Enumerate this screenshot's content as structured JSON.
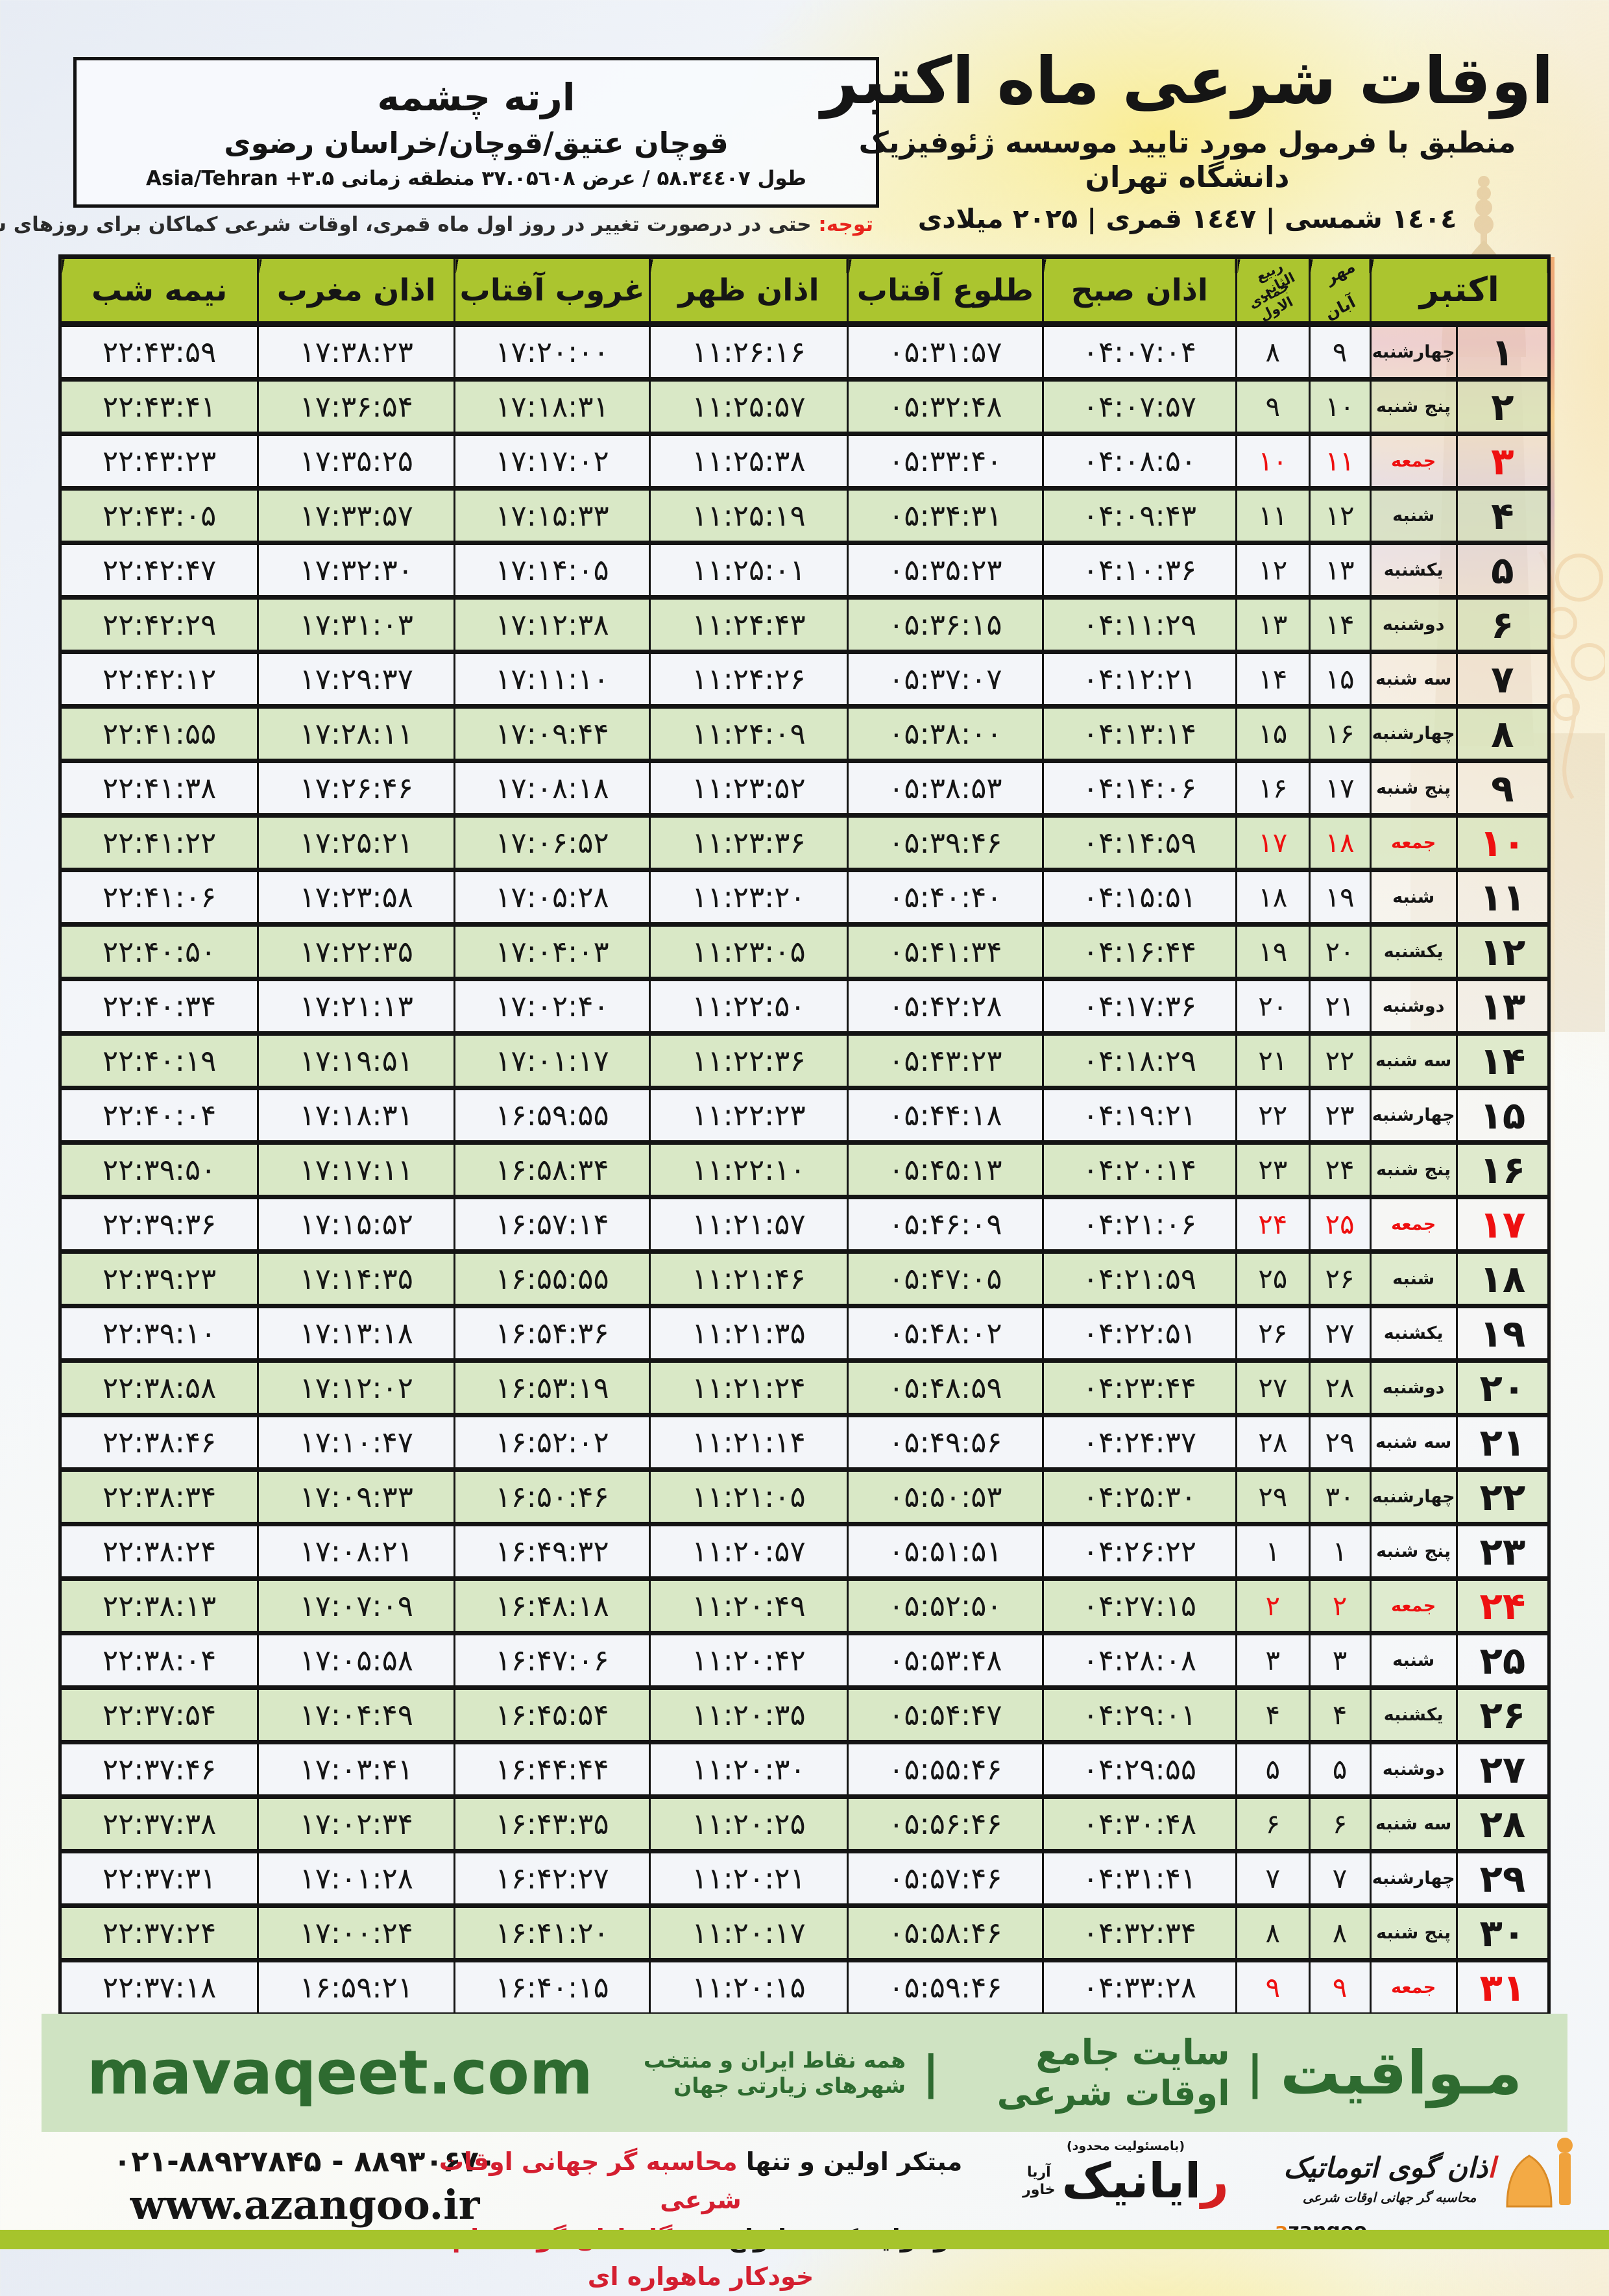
{
  "header": {
    "title": "اوقات شرعی ماه اکتبر",
    "subtitle": "منطبق با فرمول مورد تایید موسسه ژئوفیزیک دانشگاه تهران",
    "dates": "۱٤۰٤ شمسی | ۱٤٤۷ قمری | ۲۰۲۵ میلادی"
  },
  "location": {
    "name": "ارته چشمه",
    "region": "قوچان عتیق/قوچان/خراسان رضوی",
    "coords": "طول ۵۸.۳٤٤۰۷ / عرض ۳۷.۰۵٦۰۸ منطقه زمانی Asia/Tehran +۳.۵"
  },
  "note": {
    "label": "توجه:",
    "text": " حتی در درصورت تغییر در روز اول ماه قمری، اوقات شرعی کماکان برای روزهای شمسی و میلادی معتبر است."
  },
  "table": {
    "header": {
      "october": "اکتبر",
      "mehr": "مهر",
      "aban": "آبان",
      "rabi": "ربیع الثانی",
      "jumada": "جمادی الاول",
      "sobh": "اذان صبح",
      "tolu": "طلوع آفتاب",
      "zohr": "اذان ظهر",
      "ghorub": "غروب آفتاب",
      "maghreb": "اذان مغرب",
      "nimeshab": "نیمه شب"
    },
    "rows": [
      {
        "day": "۱",
        "weekday": "چهارشنبه",
        "shamsi": "۹",
        "qamari": "۸",
        "sobh": "۰۴:۰۷:۰۴",
        "tolu": "۰۵:۳۱:۵۷",
        "zohr": "۱۱:۲۶:۱۶",
        "ghorub": "۱۷:۲۰:۰۰",
        "maghreb": "۱۷:۳۸:۲۳",
        "nimeshab": "۲۲:۴۳:۵۹",
        "friday": false
      },
      {
        "day": "۲",
        "weekday": "پنج شنبه",
        "shamsi": "۱۰",
        "qamari": "۹",
        "sobh": "۰۴:۰۷:۵۷",
        "tolu": "۰۵:۳۲:۴۸",
        "zohr": "۱۱:۲۵:۵۷",
        "ghorub": "۱۷:۱۸:۳۱",
        "maghreb": "۱۷:۳۶:۵۴",
        "nimeshab": "۲۲:۴۳:۴۱",
        "friday": false
      },
      {
        "day": "۳",
        "weekday": "جمعه",
        "shamsi": "۱۱",
        "qamari": "۱۰",
        "sobh": "۰۴:۰۸:۵۰",
        "tolu": "۰۵:۳۳:۴۰",
        "zohr": "۱۱:۲۵:۳۸",
        "ghorub": "۱۷:۱۷:۰۲",
        "maghreb": "۱۷:۳۵:۲۵",
        "nimeshab": "۲۲:۴۳:۲۳",
        "friday": true
      },
      {
        "day": "۴",
        "weekday": "شنبه",
        "shamsi": "۱۲",
        "qamari": "۱۱",
        "sobh": "۰۴:۰۹:۴۳",
        "tolu": "۰۵:۳۴:۳۱",
        "zohr": "۱۱:۲۵:۱۹",
        "ghorub": "۱۷:۱۵:۳۳",
        "maghreb": "۱۷:۳۳:۵۷",
        "nimeshab": "۲۲:۴۳:۰۵",
        "friday": false
      },
      {
        "day": "۵",
        "weekday": "یکشنبه",
        "shamsi": "۱۳",
        "qamari": "۱۲",
        "sobh": "۰۴:۱۰:۳۶",
        "tolu": "۰۵:۳۵:۲۳",
        "zohr": "۱۱:۲۵:۰۱",
        "ghorub": "۱۷:۱۴:۰۵",
        "maghreb": "۱۷:۳۲:۳۰",
        "nimeshab": "۲۲:۴۲:۴۷",
        "friday": false
      },
      {
        "day": "۶",
        "weekday": "دوشنبه",
        "shamsi": "۱۴",
        "qamari": "۱۳",
        "sobh": "۰۴:۱۱:۲۹",
        "tolu": "۰۵:۳۶:۱۵",
        "zohr": "۱۱:۲۴:۴۳",
        "ghorub": "۱۷:۱۲:۳۸",
        "maghreb": "۱۷:۳۱:۰۳",
        "nimeshab": "۲۲:۴۲:۲۹",
        "friday": false
      },
      {
        "day": "۷",
        "weekday": "سه شنبه",
        "shamsi": "۱۵",
        "qamari": "۱۴",
        "sobh": "۰۴:۱۲:۲۱",
        "tolu": "۰۵:۳۷:۰۷",
        "zohr": "۱۱:۲۴:۲۶",
        "ghorub": "۱۷:۱۱:۱۰",
        "maghreb": "۱۷:۲۹:۳۷",
        "nimeshab": "۲۲:۴۲:۱۲",
        "friday": false
      },
      {
        "day": "۸",
        "weekday": "چهارشنبه",
        "shamsi": "۱۶",
        "qamari": "۱۵",
        "sobh": "۰۴:۱۳:۱۴",
        "tolu": "۰۵:۳۸:۰۰",
        "zohr": "۱۱:۲۴:۰۹",
        "ghorub": "۱۷:۰۹:۴۴",
        "maghreb": "۱۷:۲۸:۱۱",
        "nimeshab": "۲۲:۴۱:۵۵",
        "friday": false
      },
      {
        "day": "۹",
        "weekday": "پنج شنبه",
        "shamsi": "۱۷",
        "qamari": "۱۶",
        "sobh": "۰۴:۱۴:۰۶",
        "tolu": "۰۵:۳۸:۵۳",
        "zohr": "۱۱:۲۳:۵۲",
        "ghorub": "۱۷:۰۸:۱۸",
        "maghreb": "۱۷:۲۶:۴۶",
        "nimeshab": "۲۲:۴۱:۳۸",
        "friday": false
      },
      {
        "day": "۱۰",
        "weekday": "جمعه",
        "shamsi": "۱۸",
        "qamari": "۱۷",
        "sobh": "۰۴:۱۴:۵۹",
        "tolu": "۰۵:۳۹:۴۶",
        "zohr": "۱۱:۲۳:۳۶",
        "ghorub": "۱۷:۰۶:۵۲",
        "maghreb": "۱۷:۲۵:۲۱",
        "nimeshab": "۲۲:۴۱:۲۲",
        "friday": true
      },
      {
        "day": "۱۱",
        "weekday": "شنبه",
        "shamsi": "۱۹",
        "qamari": "۱۸",
        "sobh": "۰۴:۱۵:۵۱",
        "tolu": "۰۵:۴۰:۴۰",
        "zohr": "۱۱:۲۳:۲۰",
        "ghorub": "۱۷:۰۵:۲۸",
        "maghreb": "۱۷:۲۳:۵۸",
        "nimeshab": "۲۲:۴۱:۰۶",
        "friday": false
      },
      {
        "day": "۱۲",
        "weekday": "یکشنبه",
        "shamsi": "۲۰",
        "qamari": "۱۹",
        "sobh": "۰۴:۱۶:۴۴",
        "tolu": "۰۵:۴۱:۳۴",
        "zohr": "۱۱:۲۳:۰۵",
        "ghorub": "۱۷:۰۴:۰۳",
        "maghreb": "۱۷:۲۲:۳۵",
        "nimeshab": "۲۲:۴۰:۵۰",
        "friday": false
      },
      {
        "day": "۱۳",
        "weekday": "دوشنبه",
        "shamsi": "۲۱",
        "qamari": "۲۰",
        "sobh": "۰۴:۱۷:۳۶",
        "tolu": "۰۵:۴۲:۲۸",
        "zohr": "۱۱:۲۲:۵۰",
        "ghorub": "۱۷:۰۲:۴۰",
        "maghreb": "۱۷:۲۱:۱۳",
        "nimeshab": "۲۲:۴۰:۳۴",
        "friday": false
      },
      {
        "day": "۱۴",
        "weekday": "سه شنبه",
        "shamsi": "۲۲",
        "qamari": "۲۱",
        "sobh": "۰۴:۱۸:۲۹",
        "tolu": "۰۵:۴۳:۲۳",
        "zohr": "۱۱:۲۲:۳۶",
        "ghorub": "۱۷:۰۱:۱۷",
        "maghreb": "۱۷:۱۹:۵۱",
        "nimeshab": "۲۲:۴۰:۱۹",
        "friday": false
      },
      {
        "day": "۱۵",
        "weekday": "چهارشنبه",
        "shamsi": "۲۳",
        "qamari": "۲۲",
        "sobh": "۰۴:۱۹:۲۱",
        "tolu": "۰۵:۴۴:۱۸",
        "zohr": "۱۱:۲۲:۲۳",
        "ghorub": "۱۶:۵۹:۵۵",
        "maghreb": "۱۷:۱۸:۳۱",
        "nimeshab": "۲۲:۴۰:۰۴",
        "friday": false
      },
      {
        "day": "۱۶",
        "weekday": "پنج شنبه",
        "shamsi": "۲۴",
        "qamari": "۲۳",
        "sobh": "۰۴:۲۰:۱۴",
        "tolu": "۰۵:۴۵:۱۳",
        "zohr": "۱۱:۲۲:۱۰",
        "ghorub": "۱۶:۵۸:۳۴",
        "maghreb": "۱۷:۱۷:۱۱",
        "nimeshab": "۲۲:۳۹:۵۰",
        "friday": false
      },
      {
        "day": "۱۷",
        "weekday": "جمعه",
        "shamsi": "۲۵",
        "qamari": "۲۴",
        "sobh": "۰۴:۲۱:۰۶",
        "tolu": "۰۵:۴۶:۰۹",
        "zohr": "۱۱:۲۱:۵۷",
        "ghorub": "۱۶:۵۷:۱۴",
        "maghreb": "۱۷:۱۵:۵۲",
        "nimeshab": "۲۲:۳۹:۳۶",
        "friday": true
      },
      {
        "day": "۱۸",
        "weekday": "شنبه",
        "shamsi": "۲۶",
        "qamari": "۲۵",
        "sobh": "۰۴:۲۱:۵۹",
        "tolu": "۰۵:۴۷:۰۵",
        "zohr": "۱۱:۲۱:۴۶",
        "ghorub": "۱۶:۵۵:۵۵",
        "maghreb": "۱۷:۱۴:۳۵",
        "nimeshab": "۲۲:۳۹:۲۳",
        "friday": false
      },
      {
        "day": "۱۹",
        "weekday": "یکشنبه",
        "shamsi": "۲۷",
        "qamari": "۲۶",
        "sobh": "۰۴:۲۲:۵۱",
        "tolu": "۰۵:۴۸:۰۲",
        "zohr": "۱۱:۲۱:۳۵",
        "ghorub": "۱۶:۵۴:۳۶",
        "maghreb": "۱۷:۱۳:۱۸",
        "nimeshab": "۲۲:۳۹:۱۰",
        "friday": false
      },
      {
        "day": "۲۰",
        "weekday": "دوشنبه",
        "shamsi": "۲۸",
        "qamari": "۲۷",
        "sobh": "۰۴:۲۳:۴۴",
        "tolu": "۰۵:۴۸:۵۹",
        "zohr": "۱۱:۲۱:۲۴",
        "ghorub": "۱۶:۵۳:۱۹",
        "maghreb": "۱۷:۱۲:۰۲",
        "nimeshab": "۲۲:۳۸:۵۸",
        "friday": false
      },
      {
        "day": "۲۱",
        "weekday": "سه شنبه",
        "shamsi": "۲۹",
        "qamari": "۲۸",
        "sobh": "۰۴:۲۴:۳۷",
        "tolu": "۰۵:۴۹:۵۶",
        "zohr": "۱۱:۲۱:۱۴",
        "ghorub": "۱۶:۵۲:۰۲",
        "maghreb": "۱۷:۱۰:۴۷",
        "nimeshab": "۲۲:۳۸:۴۶",
        "friday": false
      },
      {
        "day": "۲۲",
        "weekday": "چهارشنبه",
        "shamsi": "۳۰",
        "qamari": "۲۹",
        "sobh": "۰۴:۲۵:۳۰",
        "tolu": "۰۵:۵۰:۵۳",
        "zohr": "۱۱:۲۱:۰۵",
        "ghorub": "۱۶:۵۰:۴۶",
        "maghreb": "۱۷:۰۹:۳۳",
        "nimeshab": "۲۲:۳۸:۳۴",
        "friday": false
      },
      {
        "day": "۲۳",
        "weekday": "پنج شنبه",
        "shamsi": "۱",
        "qamari": "۱",
        "sobh": "۰۴:۲۶:۲۲",
        "tolu": "۰۵:۵۱:۵۱",
        "zohr": "۱۱:۲۰:۵۷",
        "ghorub": "۱۶:۴۹:۳۲",
        "maghreb": "۱۷:۰۸:۲۱",
        "nimeshab": "۲۲:۳۸:۲۴",
        "friday": false
      },
      {
        "day": "۲۴",
        "weekday": "جمعه",
        "shamsi": "۲",
        "qamari": "۲",
        "sobh": "۰۴:۲۷:۱۵",
        "tolu": "۰۵:۵۲:۵۰",
        "zohr": "۱۱:۲۰:۴۹",
        "ghorub": "۱۶:۴۸:۱۸",
        "maghreb": "۱۷:۰۷:۰۹",
        "nimeshab": "۲۲:۳۸:۱۳",
        "friday": true
      },
      {
        "day": "۲۵",
        "weekday": "شنبه",
        "shamsi": "۳",
        "qamari": "۳",
        "sobh": "۰۴:۲۸:۰۸",
        "tolu": "۰۵:۵۳:۴۸",
        "zohr": "۱۱:۲۰:۴۲",
        "ghorub": "۱۶:۴۷:۰۶",
        "maghreb": "۱۷:۰۵:۵۸",
        "nimeshab": "۲۲:۳۸:۰۴",
        "friday": false
      },
      {
        "day": "۲۶",
        "weekday": "یکشنبه",
        "shamsi": "۴",
        "qamari": "۴",
        "sobh": "۰۴:۲۹:۰۱",
        "tolu": "۰۵:۵۴:۴۷",
        "zohr": "۱۱:۲۰:۳۵",
        "ghorub": "۱۶:۴۵:۵۴",
        "maghreb": "۱۷:۰۴:۴۹",
        "nimeshab": "۲۲:۳۷:۵۴",
        "friday": false
      },
      {
        "day": "۲۷",
        "weekday": "دوشنبه",
        "shamsi": "۵",
        "qamari": "۵",
        "sobh": "۰۴:۲۹:۵۵",
        "tolu": "۰۵:۵۵:۴۶",
        "zohr": "۱۱:۲۰:۳۰",
        "ghorub": "۱۶:۴۴:۴۴",
        "maghreb": "۱۷:۰۳:۴۱",
        "nimeshab": "۲۲:۳۷:۴۶",
        "friday": false
      },
      {
        "day": "۲۸",
        "weekday": "سه شنبه",
        "shamsi": "۶",
        "qamari": "۶",
        "sobh": "۰۴:۳۰:۴۸",
        "tolu": "۰۵:۵۶:۴۶",
        "zohr": "۱۱:۲۰:۲۵",
        "ghorub": "۱۶:۴۳:۳۵",
        "maghreb": "۱۷:۰۲:۳۴",
        "nimeshab": "۲۲:۳۷:۳۸",
        "friday": false
      },
      {
        "day": "۲۹",
        "weekday": "چهارشنبه",
        "shamsi": "۷",
        "qamari": "۷",
        "sobh": "۰۴:۳۱:۴۱",
        "tolu": "۰۵:۵۷:۴۶",
        "zohr": "۱۱:۲۰:۲۱",
        "ghorub": "۱۶:۴۲:۲۷",
        "maghreb": "۱۷:۰۱:۲۸",
        "nimeshab": "۲۲:۳۷:۳۱",
        "friday": false
      },
      {
        "day": "۳۰",
        "weekday": "پنج شنبه",
        "shamsi": "۸",
        "qamari": "۸",
        "sobh": "۰۴:۳۲:۳۴",
        "tolu": "۰۵:۵۸:۴۶",
        "zohr": "۱۱:۲۰:۱۷",
        "ghorub": "۱۶:۴۱:۲۰",
        "maghreb": "۱۷:۰۰:۲۴",
        "nimeshab": "۲۲:۳۷:۲۴",
        "friday": false
      },
      {
        "day": "۳۱",
        "weekday": "جمعه",
        "shamsi": "۹",
        "qamari": "۹",
        "sobh": "۰۴:۳۳:۲۸",
        "tolu": "۰۵:۵۹:۴۶",
        "zohr": "۱۱:۲۰:۱۵",
        "ghorub": "۱۶:۴۰:۱۵",
        "maghreb": "۱۶:۵۹:۲۱",
        "nimeshab": "۲۲:۳۷:۱۸",
        "friday": true
      }
    ]
  },
  "footer": {
    "brand": "مـواقیت",
    "brand_sep": "|",
    "brand_desc": "سایت جامع اوقات شرعی",
    "brand_scope": "همه نقاط ایران و منتخب شهرهای زیارتی جهان",
    "domain": "mavaqeet.com",
    "phone": "۰۲۱-۸۸۹۲۷۸۴۵ - ۸۸۹۳۰۶۷۰",
    "website": "www.azangoo.ir",
    "slogan_black1": "مبتکر اولین و تنها ",
    "slogan_red1": "محاسبه گر جهانی اوقات شرعی",
    "slogan_black2": "و تولید کننده انواع ",
    "slogan_red2": "دستگاه اذان گوی تمام خودکار ماهواره ای",
    "rayanik_small": "(بامسئولیت محدود)",
    "rayanik_name": "رایانیک",
    "rayanik_side1": "آریا",
    "rayanik_side2": "خاور",
    "azangoo_title": "اذان گوی اتوماتیک",
    "azangoo_sub": "محاسبه گر جهانی اوقات شرعی",
    "azangoo_latin": "azangoo"
  },
  "colors": {
    "header_olive": "#abc52f",
    "row_green": "#d9e8c6",
    "row_white": "#f3f5f9",
    "friday_red": "#ee1010",
    "footer_band": "#cfe3c2",
    "footer_green_text": "#2e6b30",
    "footer_red_text": "#d41f30",
    "bottom_bar": "#a6c42c"
  }
}
